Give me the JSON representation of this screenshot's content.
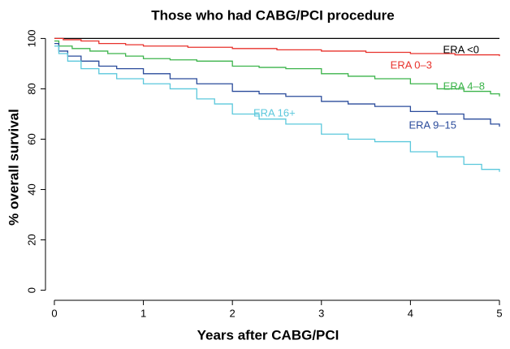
{
  "chart_data": {
    "type": "step-line",
    "title": "Those who had CABG/PCI procedure",
    "x_label": "Years after CABG/PCI",
    "y_label": "% overall survival",
    "xlim": [
      -0.1,
      5
    ],
    "ylim": [
      -4,
      104
    ],
    "xticks": [
      0,
      1,
      2,
      3,
      4,
      5
    ],
    "yticks": [
      0,
      20,
      40,
      60,
      80,
      100
    ],
    "series": [
      {
        "name": "ERA <0",
        "color": "#000000",
        "x": [
          0,
          5
        ],
        "values": [
          100,
          100
        ]
      },
      {
        "name": "ERA 0–3",
        "color": "#e8322c",
        "x": [
          0,
          0.1,
          0.3,
          0.5,
          0.8,
          1.0,
          1.5,
          2.0,
          2.5,
          3.0,
          3.5,
          4.0,
          4.5,
          5.0
        ],
        "values": [
          100,
          99.5,
          99,
          98,
          97.5,
          97,
          96.5,
          96,
          95.5,
          95,
          94.5,
          94,
          93.5,
          93
        ]
      },
      {
        "name": "ERA 4–8",
        "color": "#3cb44b",
        "x": [
          0,
          0.05,
          0.2,
          0.4,
          0.6,
          0.8,
          1,
          1.3,
          1.6,
          2,
          2.3,
          2.6,
          3,
          3.3,
          3.6,
          4,
          4.3,
          4.6,
          4.9,
          5
        ],
        "values": [
          99,
          97,
          96,
          95,
          94,
          93,
          92,
          91.5,
          91,
          89,
          88.5,
          88,
          86,
          85,
          84,
          82,
          80,
          79,
          78,
          77
        ]
      },
      {
        "name": "ERA 9–15",
        "color": "#2a4b9b",
        "x": [
          0,
          0.05,
          0.15,
          0.3,
          0.5,
          0.7,
          1,
          1.3,
          1.6,
          2,
          2.3,
          2.6,
          3,
          3.3,
          3.6,
          4,
          4.3,
          4.6,
          4.9,
          5
        ],
        "values": [
          98,
          95,
          93,
          91,
          89,
          88,
          86,
          84,
          82,
          79,
          78,
          77,
          75,
          74,
          73,
          71,
          70,
          68,
          66,
          65
        ]
      },
      {
        "name": "ERA 16+",
        "color": "#5bc8dc",
        "x": [
          0,
          0.05,
          0.15,
          0.3,
          0.5,
          0.7,
          1,
          1.3,
          1.6,
          1.8,
          2,
          2.3,
          2.6,
          3,
          3.3,
          3.6,
          4,
          4.3,
          4.6,
          4.8,
          5
        ],
        "values": [
          97,
          94,
          91,
          88,
          86,
          84,
          82,
          80,
          76,
          74,
          70,
          68,
          66,
          62,
          60,
          59,
          55,
          53,
          50,
          48,
          47
        ]
      }
    ]
  }
}
